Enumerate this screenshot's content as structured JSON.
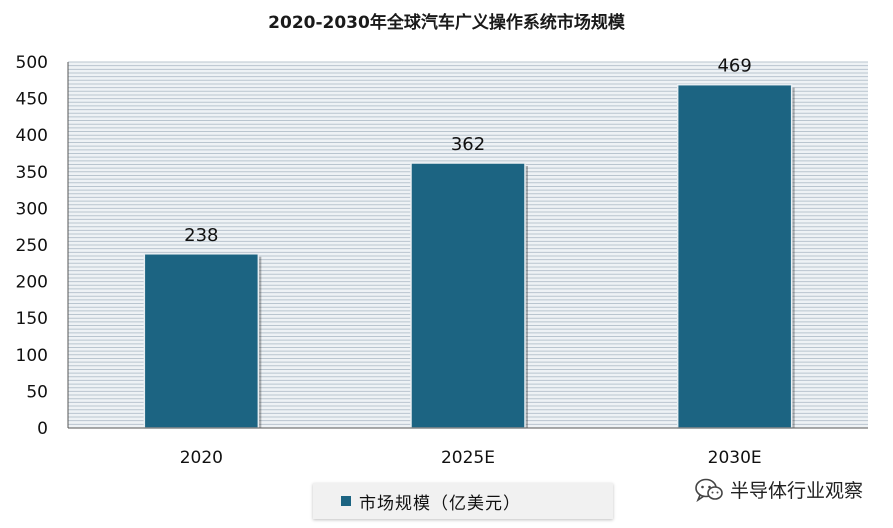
{
  "chart_data": {
    "type": "bar",
    "title": "2020-2030年全球汽车广义操作系统市场规模",
    "categories": [
      "2020",
      "2025E",
      "2030E"
    ],
    "series": [
      {
        "name": "市场规模（亿美元）",
        "values": [
          238,
          362,
          469
        ]
      }
    ],
    "data_labels": [
      "238",
      "362",
      "469"
    ],
    "y_ticks": [
      0,
      50,
      100,
      150,
      200,
      250,
      300,
      350,
      400,
      450,
      500
    ],
    "ylim": [
      0,
      500
    ],
    "grid": true,
    "legend_position": "bottom",
    "colors": {
      "bar": "#1c6482",
      "grid": "#b9c5cf",
      "plot_bg": "#eef2f5"
    }
  },
  "watermark": {
    "text": "半导体行业观察",
    "icon": "wechat-icon"
  }
}
